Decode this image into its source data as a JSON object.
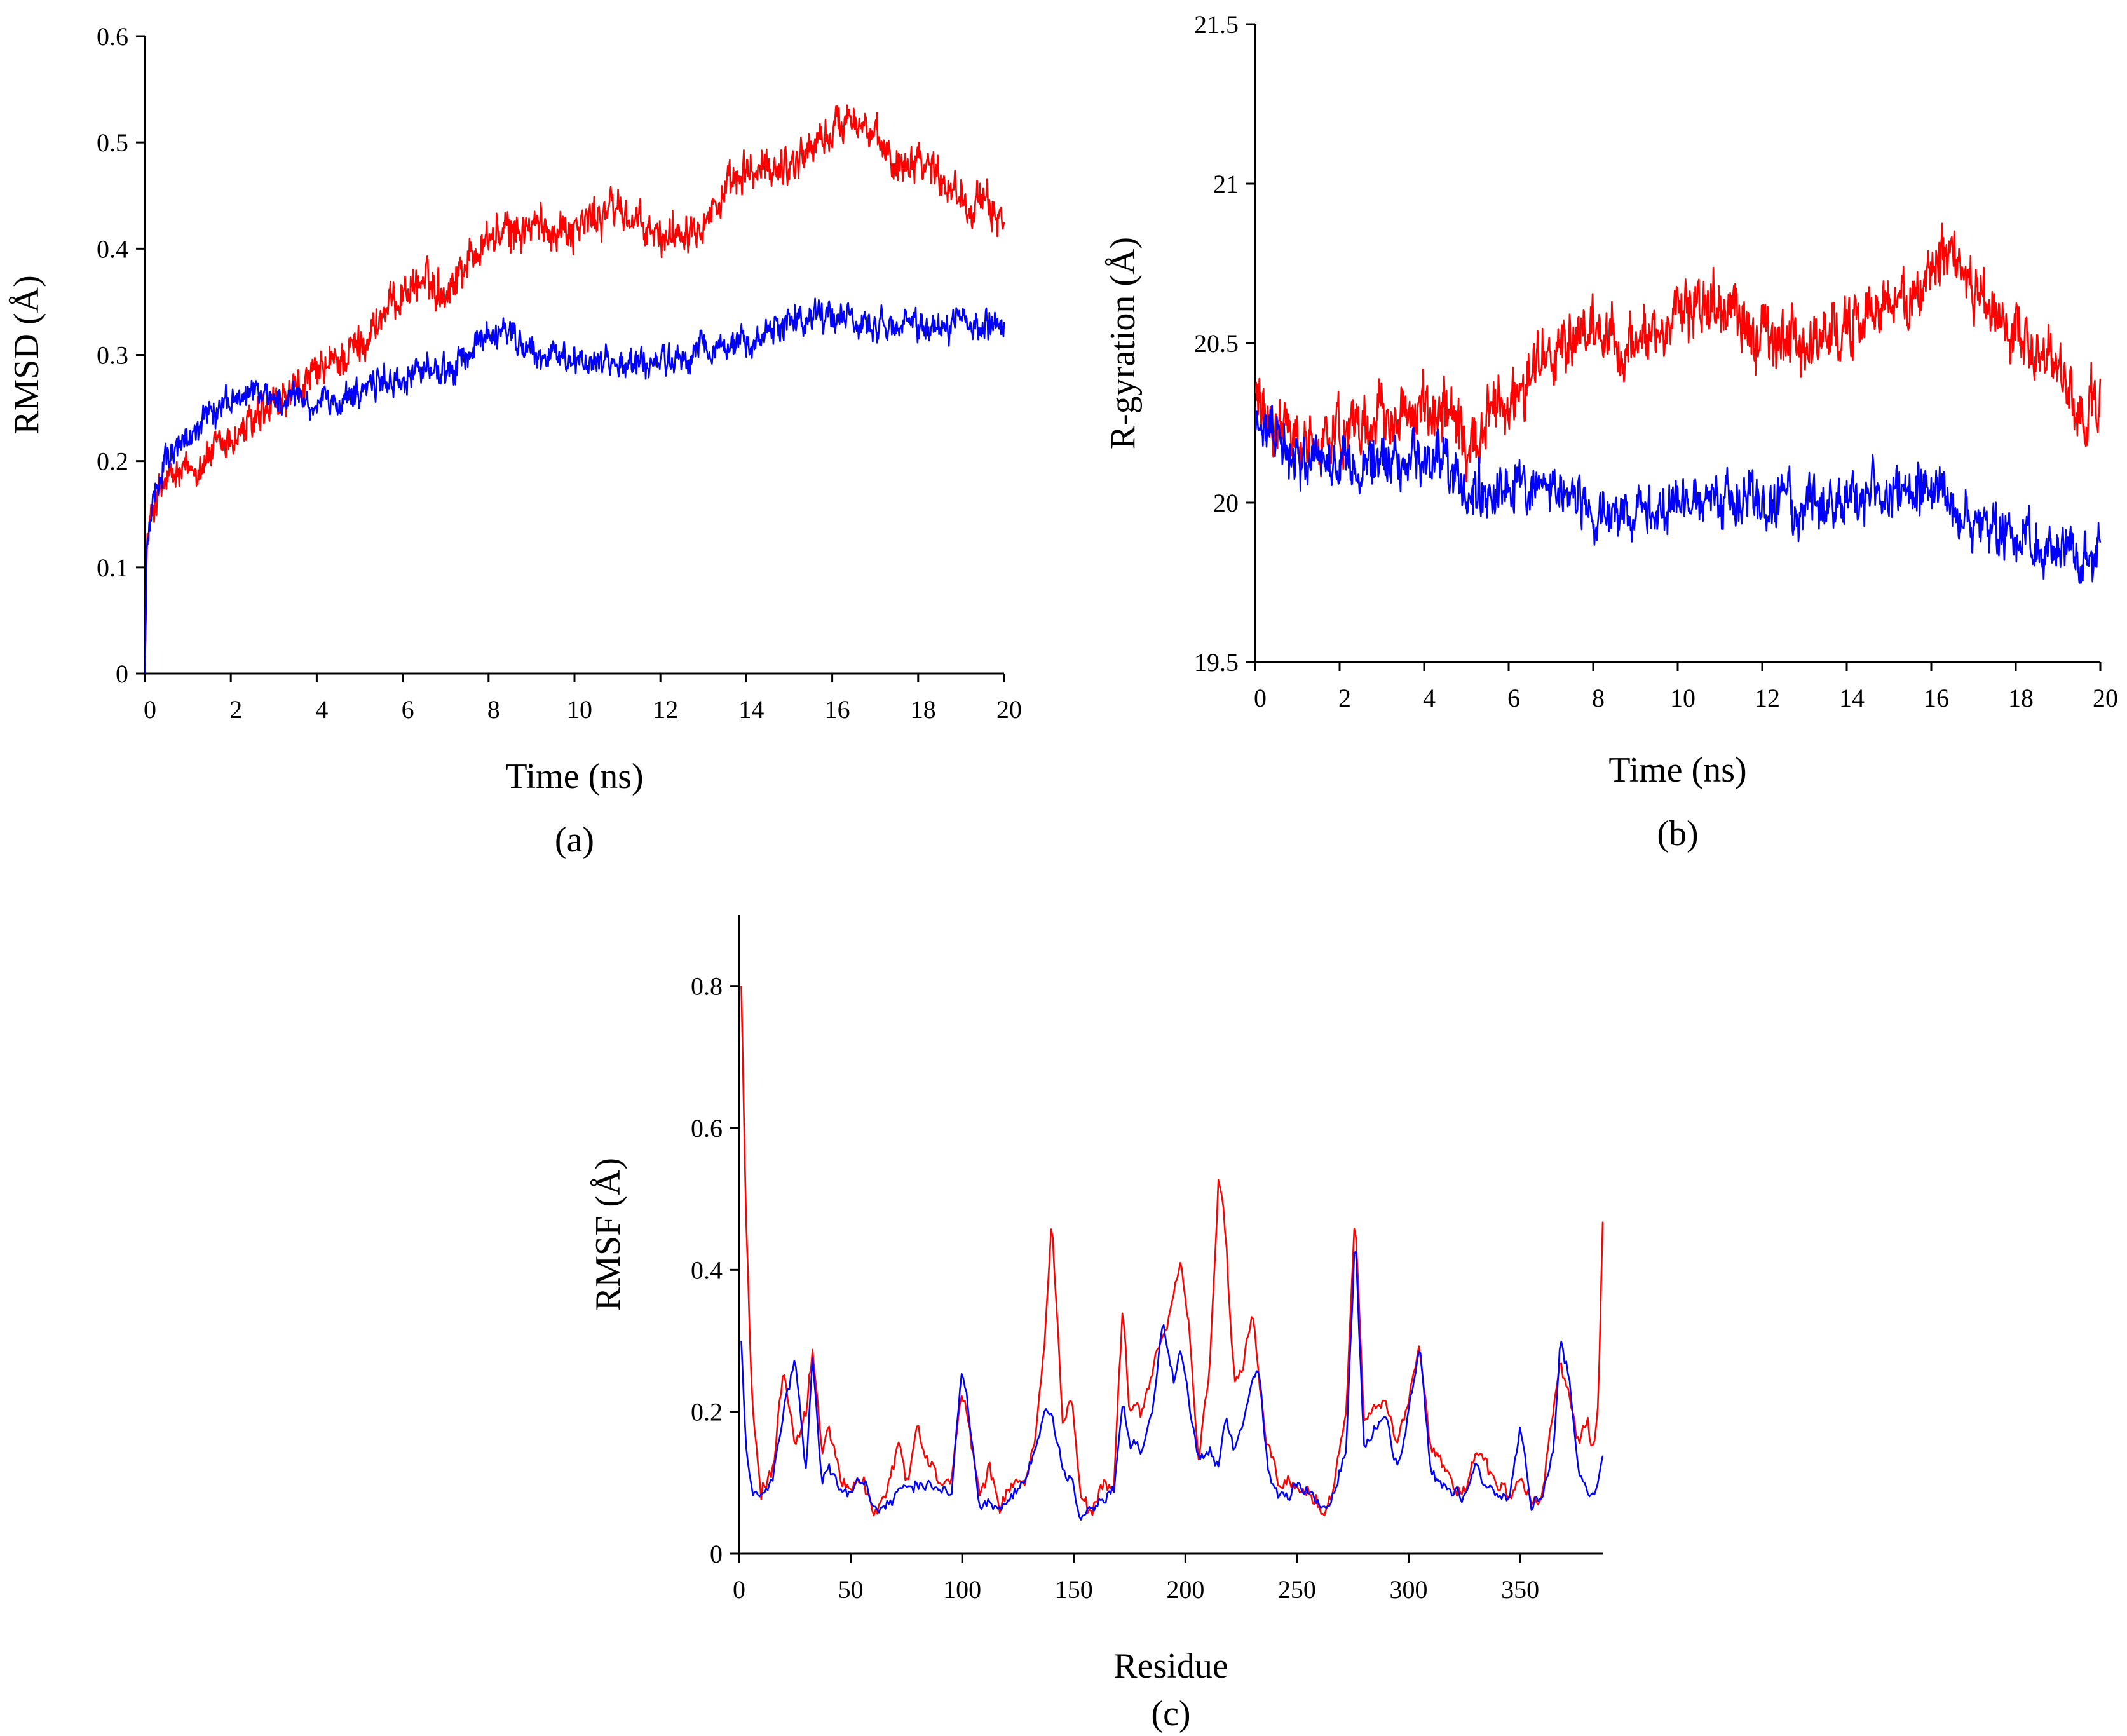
{
  "chart_data": [
    {
      "id": "a",
      "type": "line",
      "panel_label": "(a)",
      "title": "",
      "xlabel": "Time (ns)",
      "ylabel": "RMSD (Å)",
      "xlim": [
        0,
        20
      ],
      "ylim": [
        0,
        0.6
      ],
      "xticks": [
        0,
        2,
        4,
        6,
        8,
        10,
        12,
        14,
        16,
        18,
        20
      ],
      "xtick_labels": [
        "0",
        "2",
        "4",
        "6",
        "8",
        "10",
        "12",
        "14",
        "16",
        "18",
        "20"
      ],
      "yticks": [
        0,
        0.1,
        0.2,
        0.3,
        0.4,
        0.5,
        0.6
      ],
      "ytick_labels": [
        "0",
        "0.1",
        "0.2",
        "0.3",
        "0.4",
        "0.5",
        "0.6"
      ],
      "grid": false,
      "series": [
        {
          "name": "red",
          "color": "#ff0000",
          "x": [
            0,
            0.05,
            0.2,
            0.5,
            1,
            2,
            3,
            4,
            5,
            6,
            6.5,
            7,
            7.5,
            8,
            9,
            10,
            11,
            11.5,
            12,
            12.5,
            13,
            14,
            15,
            16,
            16.5,
            17,
            17.5,
            18,
            18.5,
            19,
            19.5,
            20
          ],
          "values": [
            0,
            0.12,
            0.16,
            0.18,
            0.19,
            0.22,
            0.25,
            0.28,
            0.31,
            0.36,
            0.37,
            0.36,
            0.39,
            0.41,
            0.42,
            0.42,
            0.44,
            0.42,
            0.41,
            0.42,
            0.43,
            0.47,
            0.48,
            0.51,
            0.53,
            0.5,
            0.48,
            0.49,
            0.47,
            0.45,
            0.44,
            0.43
          ],
          "noise": 0.012
        },
        {
          "name": "blue",
          "color": "#0000ff",
          "x": [
            0,
            0.05,
            0.2,
            0.5,
            1,
            1.5,
            2,
            2.5,
            3,
            4,
            5,
            6,
            7,
            8,
            8.5,
            9,
            10,
            11,
            12,
            13,
            14,
            15,
            15.5,
            16,
            17,
            18,
            19,
            20
          ],
          "values": [
            0,
            0.12,
            0.17,
            0.2,
            0.22,
            0.24,
            0.26,
            0.265,
            0.26,
            0.25,
            0.265,
            0.28,
            0.285,
            0.315,
            0.32,
            0.3,
            0.295,
            0.29,
            0.295,
            0.305,
            0.31,
            0.33,
            0.34,
            0.335,
            0.325,
            0.325,
            0.33,
            0.33
          ],
          "noise": 0.009
        }
      ]
    },
    {
      "id": "b",
      "type": "line",
      "panel_label": "(b)",
      "title": "",
      "xlabel": "Time (ns)",
      "ylabel": "R-gyration (Å)",
      "xlim": [
        0,
        20
      ],
      "ylim": [
        19.5,
        21.5
      ],
      "xticks": [
        0,
        2,
        4,
        6,
        8,
        10,
        12,
        14,
        16,
        18,
        20
      ],
      "xtick_labels": [
        "0",
        "2",
        "4",
        "6",
        "8",
        "10",
        "12",
        "14",
        "16",
        "18",
        "20"
      ],
      "yticks": [
        19.5,
        20,
        20.5,
        21,
        21.5
      ],
      "ytick_labels": [
        "19.5",
        "20",
        "20.5",
        "21",
        "21.5"
      ],
      "grid": false,
      "series": [
        {
          "name": "red",
          "color": "#ff0000",
          "x": [
            0,
            0.2,
            1,
            2,
            3,
            4,
            4.5,
            5,
            6,
            7,
            8,
            9,
            10,
            11,
            12,
            13,
            14,
            15,
            16,
            16.5,
            17,
            18,
            19,
            19.5,
            20
          ],
          "values": [
            20.35,
            20.3,
            20.18,
            20.22,
            20.27,
            20.27,
            20.28,
            20.15,
            20.33,
            20.47,
            20.52,
            20.48,
            20.6,
            20.62,
            20.5,
            20.5,
            20.55,
            20.6,
            20.72,
            20.78,
            20.65,
            20.55,
            20.4,
            20.3,
            20.28
          ],
          "noise": 0.06
        },
        {
          "name": "blue",
          "color": "#0000ff",
          "x": [
            0,
            0.2,
            1,
            2,
            3,
            4,
            4.5,
            5,
            6,
            7,
            8,
            9,
            10,
            11,
            12,
            13,
            14,
            15,
            16,
            16.5,
            17,
            18,
            19,
            19.5,
            20
          ],
          "values": [
            20.3,
            20.22,
            20.14,
            20.12,
            20.12,
            20.12,
            20.15,
            20.02,
            20.05,
            20.04,
            19.98,
            19.97,
            20.0,
            20.01,
            20.0,
            19.99,
            20.0,
            20.02,
            20.05,
            20.0,
            19.93,
            19.9,
            19.85,
            19.83,
            19.85
          ],
          "noise": 0.05
        }
      ]
    },
    {
      "id": "c",
      "type": "line",
      "panel_label": "(c)",
      "title": "",
      "xlabel": "Residue",
      "ylabel": "RMSF (Å)",
      "xlim": [
        0,
        387
      ],
      "ylim": [
        0,
        0.9
      ],
      "xticks": [
        0,
        50,
        100,
        150,
        200,
        250,
        300,
        350
      ],
      "xtick_labels": [
        "0",
        "50",
        "100",
        "150",
        "200",
        "250",
        "300",
        "350"
      ],
      "yticks": [
        0,
        0.2,
        0.4,
        0.6,
        0.8
      ],
      "ytick_labels": [
        "0",
        "0.2",
        "0.4",
        "0.6",
        "0.8"
      ],
      "grid": false,
      "series": [
        {
          "name": "red",
          "color": "#ff0000",
          "x": [
            1,
            3,
            6,
            10,
            15,
            20,
            25,
            30,
            33,
            37,
            40,
            45,
            50,
            55,
            60,
            65,
            72,
            75,
            80,
            85,
            90,
            95,
            100,
            103,
            108,
            112,
            117,
            122,
            128,
            133,
            137,
            140,
            145,
            149,
            153,
            158,
            163,
            168,
            172,
            175,
            180,
            185,
            190,
            195,
            198,
            202,
            206,
            211,
            215,
            218,
            222,
            225,
            230,
            233,
            237,
            242,
            247,
            252,
            257,
            262,
            267,
            272,
            276,
            280,
            285,
            290,
            295,
            300,
            305,
            310,
            315,
            320,
            325,
            330,
            335,
            340,
            345,
            350,
            355,
            360,
            365,
            368,
            372,
            376,
            380,
            383,
            385,
            387
          ],
          "values": [
            0.8,
            0.5,
            0.2,
            0.09,
            0.12,
            0.26,
            0.15,
            0.2,
            0.28,
            0.15,
            0.18,
            0.12,
            0.09,
            0.11,
            0.06,
            0.08,
            0.16,
            0.1,
            0.17,
            0.12,
            0.1,
            0.1,
            0.23,
            0.17,
            0.08,
            0.12,
            0.07,
            0.09,
            0.1,
            0.18,
            0.3,
            0.47,
            0.18,
            0.23,
            0.08,
            0.06,
            0.09,
            0.1,
            0.35,
            0.2,
            0.2,
            0.25,
            0.31,
            0.36,
            0.4,
            0.3,
            0.13,
            0.28,
            0.54,
            0.45,
            0.23,
            0.25,
            0.34,
            0.25,
            0.15,
            0.09,
            0.1,
            0.1,
            0.08,
            0.06,
            0.1,
            0.2,
            0.48,
            0.18,
            0.2,
            0.22,
            0.15,
            0.22,
            0.28,
            0.15,
            0.13,
            0.1,
            0.08,
            0.15,
            0.12,
            0.1,
            0.08,
            0.12,
            0.07,
            0.08,
            0.2,
            0.27,
            0.22,
            0.16,
            0.18,
            0.15,
            0.2,
            0.47
          ],
          "noise": 0.008
        },
        {
          "name": "blue",
          "color": "#0000ff",
          "x": [
            1,
            3,
            6,
            10,
            15,
            20,
            25,
            30,
            33,
            37,
            40,
            45,
            50,
            55,
            60,
            65,
            72,
            75,
            80,
            85,
            90,
            95,
            100,
            103,
            108,
            112,
            117,
            122,
            128,
            133,
            137,
            140,
            145,
            149,
            153,
            158,
            163,
            168,
            172,
            175,
            180,
            185,
            190,
            195,
            198,
            202,
            206,
            211,
            215,
            218,
            222,
            225,
            230,
            233,
            237,
            242,
            247,
            252,
            257,
            262,
            267,
            272,
            276,
            280,
            285,
            290,
            295,
            300,
            305,
            310,
            315,
            320,
            325,
            330,
            335,
            340,
            345,
            350,
            355,
            360,
            365,
            368,
            372,
            376,
            380,
            383,
            385,
            387
          ],
          "values": [
            0.3,
            0.15,
            0.09,
            0.08,
            0.1,
            0.2,
            0.27,
            0.12,
            0.28,
            0.1,
            0.12,
            0.09,
            0.08,
            0.1,
            0.07,
            0.07,
            0.09,
            0.1,
            0.1,
            0.1,
            0.09,
            0.08,
            0.26,
            0.2,
            0.06,
            0.07,
            0.06,
            0.08,
            0.1,
            0.15,
            0.2,
            0.2,
            0.12,
            0.1,
            0.05,
            0.06,
            0.07,
            0.09,
            0.22,
            0.15,
            0.15,
            0.2,
            0.33,
            0.24,
            0.3,
            0.2,
            0.13,
            0.15,
            0.12,
            0.2,
            0.15,
            0.18,
            0.24,
            0.26,
            0.12,
            0.08,
            0.09,
            0.09,
            0.08,
            0.06,
            0.09,
            0.15,
            0.45,
            0.15,
            0.18,
            0.2,
            0.12,
            0.2,
            0.29,
            0.12,
            0.1,
            0.09,
            0.08,
            0.13,
            0.1,
            0.08,
            0.07,
            0.18,
            0.07,
            0.08,
            0.15,
            0.3,
            0.25,
            0.12,
            0.09,
            0.08,
            0.1,
            0.14
          ],
          "noise": 0.006
        }
      ]
    }
  ]
}
